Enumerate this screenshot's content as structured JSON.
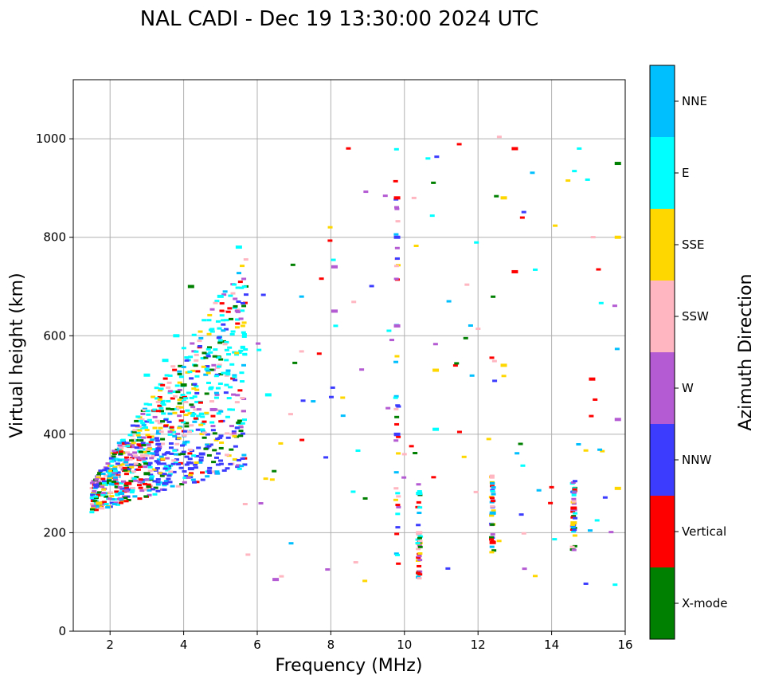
{
  "chart_data": {
    "type": "scatter",
    "title": "NAL CADI - Dec 19 13:30:00 2024 UTC",
    "xlabel": "Frequency (MHz)",
    "ylabel": "Virtual height (km)",
    "xlim": [
      1,
      16
    ],
    "ylim": [
      0,
      1120
    ],
    "xticks": [
      2,
      4,
      6,
      8,
      10,
      12,
      14,
      16
    ],
    "yticks": [
      0,
      200,
      400,
      600,
      800,
      1000
    ],
    "grid": true,
    "colorbar": {
      "label": "Azimuth Direction",
      "categories": [
        {
          "name": "X-mode",
          "color": "#008000"
        },
        {
          "name": "Vertical",
          "color": "#ff0000"
        },
        {
          "name": "NNW",
          "color": "#3c3cff"
        },
        {
          "name": "W",
          "color": "#b45ad2"
        },
        {
          "name": "SSW",
          "color": "#ffb6c1"
        },
        {
          "name": "SSE",
          "color": "#ffd700"
        },
        {
          "name": "E",
          "color": "#00ffff"
        },
        {
          "name": "NNE",
          "color": "#00bfff"
        }
      ]
    },
    "points": [
      {
        "f": 2.5,
        "h": 300,
        "az": "Vertical"
      },
      {
        "f": 2.3,
        "h": 280,
        "az": "NNE"
      },
      {
        "f": 1.7,
        "h": 260,
        "az": "SSE"
      },
      {
        "f": 3.0,
        "h": 320,
        "az": "X-mode"
      },
      {
        "f": 3.5,
        "h": 300,
        "az": "NNW"
      },
      {
        "f": 4.2,
        "h": 330,
        "az": "NNW"
      },
      {
        "f": 4.5,
        "h": 360,
        "az": "NNW"
      },
      {
        "f": 4.8,
        "h": 450,
        "az": "W"
      },
      {
        "f": 4.0,
        "h": 500,
        "az": "X-mode"
      },
      {
        "f": 3.5,
        "h": 550,
        "az": "E"
      },
      {
        "f": 3.0,
        "h": 520,
        "az": "E"
      },
      {
        "f": 3.8,
        "h": 600,
        "az": "E"
      },
      {
        "f": 4.2,
        "h": 700,
        "az": "X-mode"
      },
      {
        "f": 5.5,
        "h": 780,
        "az": "E"
      },
      {
        "f": 5.0,
        "h": 680,
        "az": "E"
      },
      {
        "f": 6.3,
        "h": 480,
        "az": "E"
      },
      {
        "f": 6.5,
        "h": 105,
        "az": "W"
      },
      {
        "f": 8.1,
        "h": 650,
        "az": "W"
      },
      {
        "f": 8.1,
        "h": 740,
        "az": "W"
      },
      {
        "f": 9.8,
        "h": 800,
        "az": "NNW"
      },
      {
        "f": 9.8,
        "h": 880,
        "az": "Vertical"
      },
      {
        "f": 9.8,
        "h": 400,
        "az": "NNW"
      },
      {
        "f": 9.8,
        "h": 620,
        "az": "W"
      },
      {
        "f": 10.4,
        "h": 200,
        "az": "SSW"
      },
      {
        "f": 10.4,
        "h": 280,
        "az": "E"
      },
      {
        "f": 10.85,
        "h": 530,
        "az": "SSE"
      },
      {
        "f": 10.85,
        "h": 410,
        "az": "E"
      },
      {
        "f": 12.4,
        "h": 240,
        "az": "NNE"
      },
      {
        "f": 12.4,
        "h": 180,
        "az": "Vertical"
      },
      {
        "f": 12.7,
        "h": 540,
        "az": "SSE"
      },
      {
        "f": 12.7,
        "h": 880,
        "az": "SSE"
      },
      {
        "f": 13.0,
        "h": 730,
        "az": "Vertical"
      },
      {
        "f": 13.0,
        "h": 980,
        "az": "Vertical"
      },
      {
        "f": 14.6,
        "h": 250,
        "az": "Vertical"
      },
      {
        "f": 14.6,
        "h": 220,
        "az": "SSE"
      },
      {
        "f": 15.1,
        "h": 512,
        "az": "Vertical"
      },
      {
        "f": 15.8,
        "h": 950,
        "az": "X-mode"
      },
      {
        "f": 15.8,
        "h": 800,
        "az": "SSE"
      },
      {
        "f": 15.8,
        "h": 430,
        "az": "W"
      },
      {
        "f": 15.8,
        "h": 290,
        "az": "SSE"
      }
    ]
  }
}
